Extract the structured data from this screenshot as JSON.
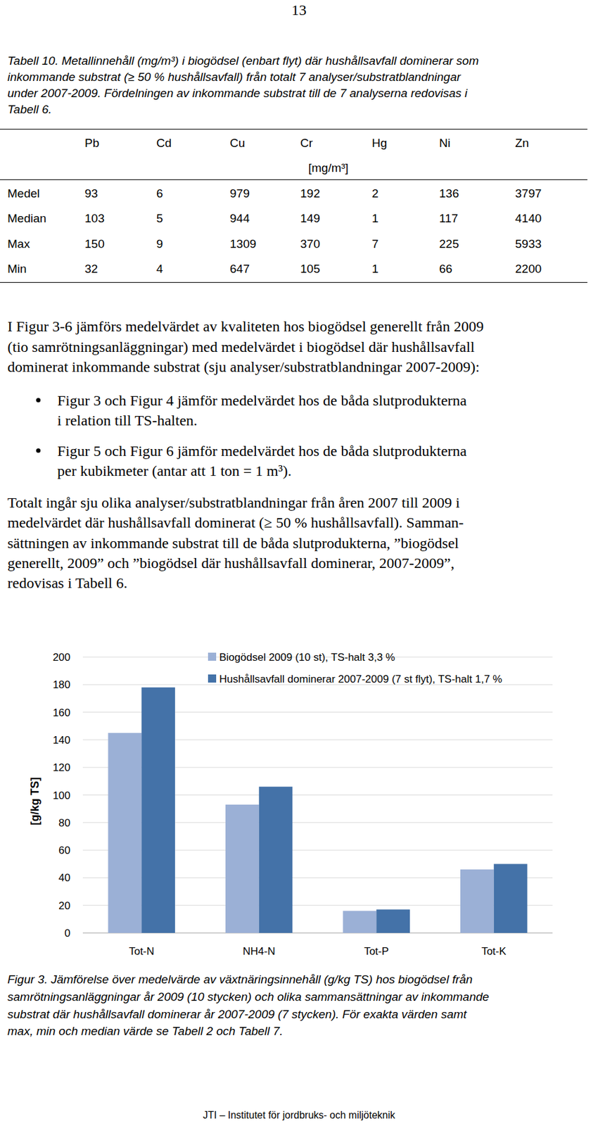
{
  "page_number": "13",
  "table_caption": {
    "lines": [
      "Tabell 10. Metallinnehåll (mg/m³) i biogödsel (enbart flyt) där hushållsavfall dominerar som",
      "inkommande substrat (≥ 50 % hushållsavfall) från totalt 7 analyser/substratblandningar",
      "under 2007-2009. Fördelningen av inkommande substrat till de 7 analyserna redovisas i",
      "Tabell 6."
    ]
  },
  "table": {
    "columns": [
      "Pb",
      "Cd",
      "Cu",
      "Cr",
      "Hg",
      "Ni",
      "Zn"
    ],
    "unit": "[mg/m³]",
    "rows": [
      {
        "label": "Medel",
        "values": [
          93,
          6,
          979,
          192,
          2,
          136,
          3797
        ]
      },
      {
        "label": "Median",
        "values": [
          103,
          5,
          944,
          149,
          1,
          117,
          4140
        ]
      },
      {
        "label": "Max",
        "values": [
          150,
          9,
          1309,
          370,
          7,
          225,
          5933
        ]
      },
      {
        "label": "Min",
        "values": [
          32,
          4,
          647,
          105,
          1,
          66,
          2200
        ]
      }
    ]
  },
  "intro": {
    "lines": [
      "I Figur 3-6 jämförs medelvärdet av kvaliteten hos biogödsel generellt från 2009",
      "(tio samrötningsanläggningar) med medelvärdet i biogödsel där hushållsavfall",
      "dominerat inkommande substrat (sju analyser/substratblandningar 2007-2009):"
    ]
  },
  "bullets": [
    {
      "lines": [
        "Figur 3 och Figur 4 jämför medelvärdet hos de båda slutprodukterna",
        "i relation till TS-halten."
      ]
    },
    {
      "lines": [
        "Figur 5 och Figur 6 jämför medelvärdet hos de båda slutprodukterna",
        "per kubikmeter (antar att 1 ton = 1 m³)."
      ]
    }
  ],
  "paragraph": {
    "lines": [
      "Totalt ingår sju olika analyser/substratblandningar från åren 2007 till 2009 i",
      "medelvärdet där hushållsavfall dominerat (≥ 50 % hushållsavfall). Samman-",
      "sättningen av inkommande substrat till de båda slutprodukterna, ”biogödsel",
      "generellt, 2009” och ”biogödsel där hushållsavfall dominerar, 2007-2009”,",
      "redovisas i Tabell 6."
    ]
  },
  "chart_data": {
    "type": "bar",
    "y_label": "[g/kg TS]",
    "categories": [
      "Tot-N",
      "NH4-N",
      "Tot-P",
      "Tot-K"
    ],
    "series": [
      {
        "name": "Biogödsel 2009 (10 st), TS-halt 3,3 %",
        "color": "#9bb0d6",
        "values": [
          145,
          93,
          16,
          46
        ]
      },
      {
        "name": "Hushållsavfall dominerar 2007-2009 (7 st flyt), TS-halt 1,7 %",
        "color": "#4472a8",
        "values": [
          178,
          106,
          17,
          50
        ]
      }
    ],
    "ylim": [
      0,
      200
    ],
    "yticks": [
      0,
      20,
      40,
      60,
      80,
      100,
      120,
      140,
      160,
      180,
      200
    ],
    "grid": true,
    "legend": "top"
  },
  "figure_caption": {
    "lines": [
      "Figur 3. Jämförelse över medelvärde av växtnäringsinnehåll (g/kg TS) hos biogödsel från",
      "samrötningsanläggningar år 2009 (10 stycken) och olika sammansättningar av inkommande",
      "substrat där hushållsavfall dominerar år 2007-2009 (7 stycken). För exakta värden samt",
      "max, min och median värde se Tabell 2 och Tabell 7."
    ]
  },
  "footer": "JTI – Institutet för jordbruks- och miljöteknik"
}
